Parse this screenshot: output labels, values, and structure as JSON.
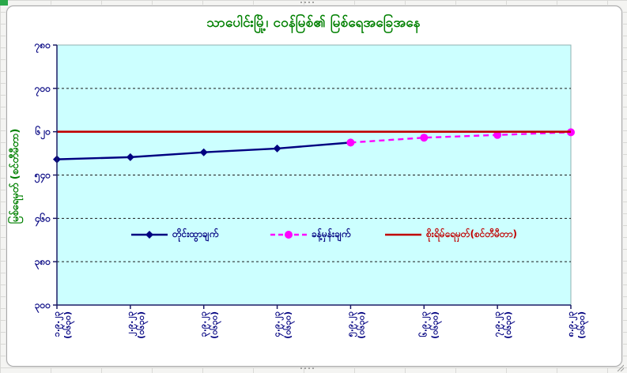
{
  "window": {
    "corner_cell_color": "#2aa84a",
    "sheet_gridline_color": "#d9d9d6"
  },
  "chart_data": {
    "type": "line",
    "title": "သာပေါင်းမြို့၊ ငဝန်မြစ်၏ မြစ်ရေအခြေအနေ",
    "title_color": "#008000",
    "xlabel": "",
    "ylabel": "မြစ်ရေမှတ် (စင်တီမီတာ)",
    "ylabel_color": "#008000",
    "ylim": [
      300,
      780
    ],
    "ytick_step": 80,
    "yticks": [
      {
        "v": 780,
        "label": "၇၈၀"
      },
      {
        "v": 700,
        "label": "၇၀၀"
      },
      {
        "v": 620,
        "label": "၆၂၀"
      },
      {
        "v": 540,
        "label": "၅၄၀"
      },
      {
        "v": 460,
        "label": "၄၆၀"
      },
      {
        "v": 380,
        "label": "၃၈၀"
      },
      {
        "v": 300,
        "label": "၃၀၀"
      }
    ],
    "categories": [
      {
        "date": "၁.၉.၂၃",
        "time": "(၀၆၃၀)"
      },
      {
        "date": "၂.၉.၂၃",
        "time": "(၀၆၃၀)"
      },
      {
        "date": "၃.၉.၂၃",
        "time": "(၀၆၃၀)"
      },
      {
        "date": "၄.၉.၂၃",
        "time": "(၀၆၃၀)"
      },
      {
        "date": "၅.၉.၂၃",
        "time": "(၀၆၃၀)"
      },
      {
        "date": "၆.၉.၂၃",
        "time": "(၀၆၃၀)"
      },
      {
        "date": "၇.၉.၂၃",
        "time": "(၀၆၃၀)"
      },
      {
        "date": "၈.၉.၂၃",
        "time": "(၀၆၃၀)"
      }
    ],
    "series": [
      {
        "name": "တိုင်းထွာချက်",
        "color": "#000080",
        "legend_text_color": "#000080",
        "marker": "diamond",
        "line": "solid",
        "values": [
          569,
          573,
          582,
          589,
          600,
          null,
          null,
          null
        ]
      },
      {
        "name": "ခန့်မှန်းချက်",
        "color": "#FF00FF",
        "legend_text_color": "#000080",
        "marker": "circle",
        "line": "dashed",
        "values": [
          null,
          null,
          null,
          null,
          600,
          609,
          614,
          619
        ]
      },
      {
        "name": "စိုးရိမ်ရေမှတ်(စင်တီမီတာ)",
        "color": "#C00000",
        "legend_text_color": "#C00000",
        "marker": "none",
        "line": "solid",
        "constant_value": 620
      }
    ],
    "danger_level": 620,
    "plot_bg": "#CCFFFF",
    "grid": "horizontal-dashed",
    "tick_label_color": "#000080",
    "legend_position": "inside-bottom"
  }
}
